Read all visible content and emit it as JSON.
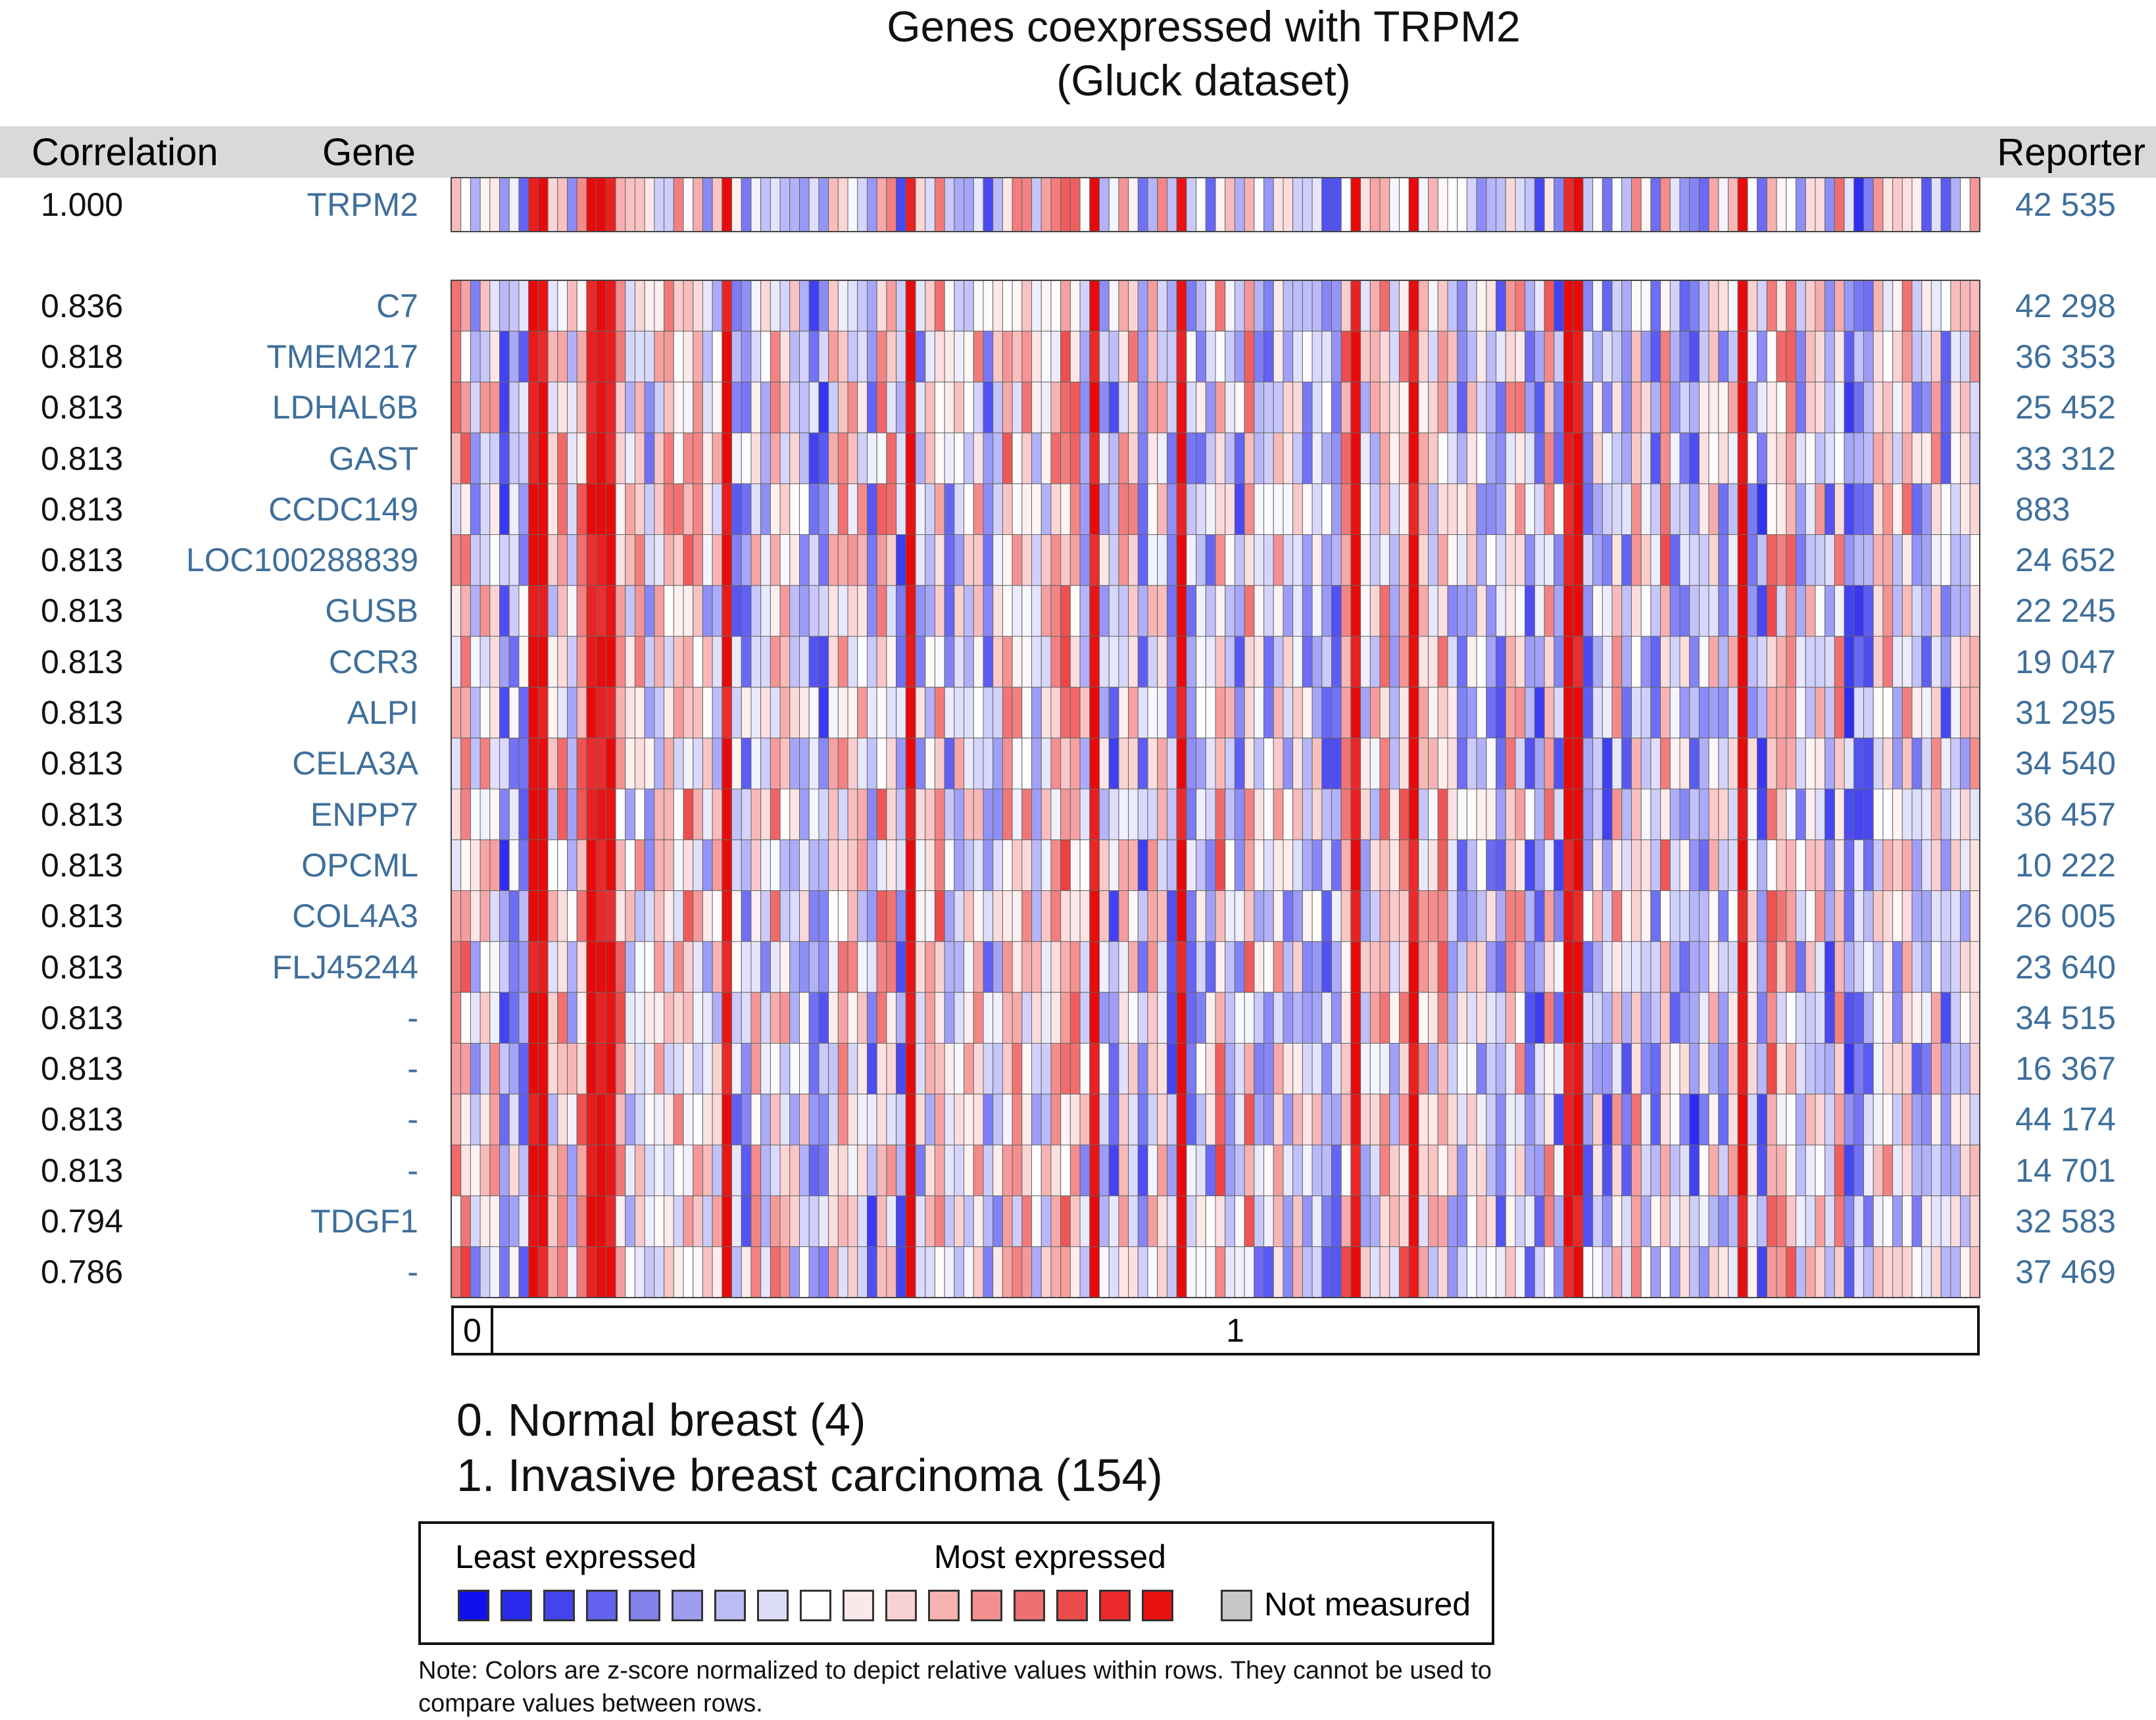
{
  "title": {
    "line1": "Genes coexpressed with TRPM2",
    "line2": "(Gluck dataset)"
  },
  "header": {
    "correlation": "Correlation",
    "gene": "Gene",
    "reporter": "Reporter"
  },
  "query_row": {
    "correlation": "1.000",
    "gene": "TRPM2",
    "reporter": "42 535"
  },
  "rows": [
    {
      "correlation": "0.836",
      "gene": "C7",
      "reporter": "42 298"
    },
    {
      "correlation": "0.818",
      "gene": "TMEM217",
      "reporter": "36 353"
    },
    {
      "correlation": "0.813",
      "gene": "LDHAL6B",
      "reporter": "25 452"
    },
    {
      "correlation": "0.813",
      "gene": "GAST",
      "reporter": "33 312"
    },
    {
      "correlation": "0.813",
      "gene": "CCDC149",
      "reporter": "883"
    },
    {
      "correlation": "0.813",
      "gene": "LOC100288839",
      "reporter": "24 652"
    },
    {
      "correlation": "0.813",
      "gene": "GUSB",
      "reporter": "22 245"
    },
    {
      "correlation": "0.813",
      "gene": "CCR3",
      "reporter": "19 047"
    },
    {
      "correlation": "0.813",
      "gene": "ALPI",
      "reporter": "31 295"
    },
    {
      "correlation": "0.813",
      "gene": "CELA3A",
      "reporter": "34 540"
    },
    {
      "correlation": "0.813",
      "gene": "ENPP7",
      "reporter": "36 457"
    },
    {
      "correlation": "0.813",
      "gene": "OPCML",
      "reporter": "10 222"
    },
    {
      "correlation": "0.813",
      "gene": "COL4A3",
      "reporter": "26 005"
    },
    {
      "correlation": "0.813",
      "gene": "FLJ45244",
      "reporter": "23 640"
    },
    {
      "correlation": "0.813",
      "gene": "-",
      "reporter": "34 515"
    },
    {
      "correlation": "0.813",
      "gene": "-",
      "reporter": "16 367"
    },
    {
      "correlation": "0.813",
      "gene": "-",
      "reporter": "44 174"
    },
    {
      "correlation": "0.813",
      "gene": "-",
      "reporter": "14 701"
    },
    {
      "correlation": "0.794",
      "gene": "TDGF1",
      "reporter": "32 583"
    },
    {
      "correlation": "0.786",
      "gene": "-",
      "reporter": "37 469"
    }
  ],
  "classes": {
    "normal_label": "0",
    "carcinoma_label": "1"
  },
  "class_descriptions": {
    "normal": "0. Normal breast (4)",
    "carcinoma": "1. Invasive breast carcinoma (154)"
  },
  "legend": {
    "least": "Least expressed",
    "most": "Most expressed",
    "not_measured": "Not measured",
    "scale_colors": [
      "#1010ee",
      "#2a2aee",
      "#4444ee",
      "#6262ee",
      "#8282ea",
      "#9e9eee",
      "#bcbcf4",
      "#dcdcf8",
      "#ffffff",
      "#fbe8e8",
      "#f8d2d2",
      "#f6b2b2",
      "#f29090",
      "#ee7070",
      "#ec4c4c",
      "#ea2a2a",
      "#e81010"
    ],
    "not_measured_color": "#c8c8c8"
  },
  "note": "Note: Colors are z-score normalized to depict relative values within rows. They cannot be used to compare values between rows.",
  "chart_data": {
    "type": "heatmap",
    "title": "Genes coexpressed with TRPM2 (Gluck dataset)",
    "rows": [
      "TRPM2",
      "C7",
      "TMEM217",
      "LDHAL6B",
      "GAST",
      "CCDC149",
      "LOC100288839",
      "GUSB",
      "CCR3",
      "ALPI",
      "CELA3A",
      "ENPP7",
      "OPCML",
      "COL4A3",
      "FLJ45244",
      "-",
      "-",
      "-",
      "-",
      "TDGF1",
      "-"
    ],
    "correlation": [
      1.0,
      0.836,
      0.818,
      0.813,
      0.813,
      0.813,
      0.813,
      0.813,
      0.813,
      0.813,
      0.813,
      0.813,
      0.813,
      0.813,
      0.813,
      0.813,
      0.813,
      0.813,
      0.813,
      0.794,
      0.786
    ],
    "reporter": [
      "42 535",
      "42 298",
      "36 353",
      "25 452",
      "33 312",
      "883",
      "24 652",
      "22 245",
      "19 047",
      "31 295",
      "34 540",
      "36 457",
      "10 222",
      "26 005",
      "23 640",
      "34 515",
      "16 367",
      "44 174",
      "14 701",
      "32 583",
      "37 469"
    ],
    "sample_groups": [
      {
        "label": "0",
        "name": "Normal breast",
        "count": 4
      },
      {
        "label": "1",
        "name": "Invasive breast carcinoma",
        "count": 154
      }
    ],
    "n_samples": 158,
    "highlight_columns": [
      16,
      17,
      26,
      29,
      30,
      53,
      89,
      126,
      142,
      177,
      188,
      219,
      220,
      252
    ],
    "color_scale": "z-score, blue (least) to red (most)"
  }
}
